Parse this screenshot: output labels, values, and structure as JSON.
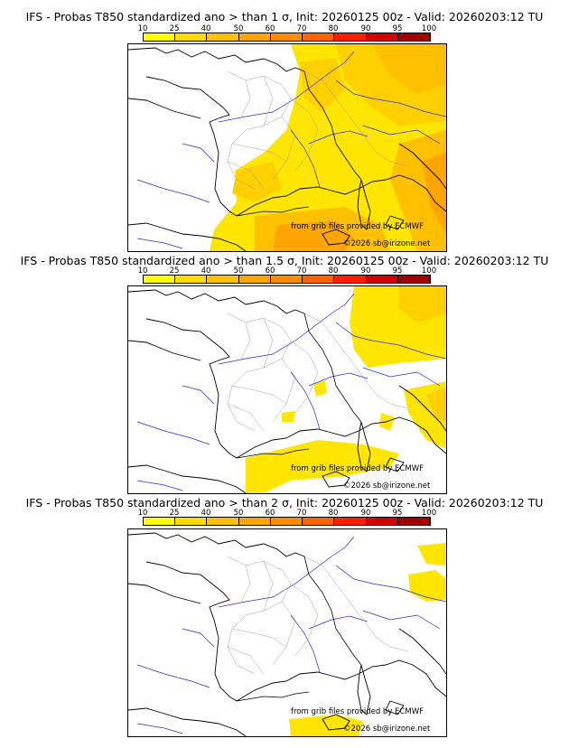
{
  "colorbar": {
    "ticks": [
      "10",
      "25",
      "40",
      "50",
      "60",
      "70",
      "80",
      "90",
      "95",
      "100"
    ],
    "colors": [
      "#ffff00",
      "#ffdc00",
      "#ffc000",
      "#ffa500",
      "#ff8c00",
      "#ff6400",
      "#ff1e00",
      "#d20000",
      "#a00000",
      "#640000"
    ]
  },
  "panels": [
    {
      "title": "IFS - Probas T850  standardized ano > than 1 σ, Init: 20260125 00z - Valid: 20260203:12 TU",
      "credit_source": "from grib files provided by ECMWF",
      "credit_copyright": "©2026 sb@irizone.net",
      "anomaly_threshold": "1 σ"
    },
    {
      "title": "IFS - Probas T850  standardized ano > than 1.5 σ, Init: 20260125 00z - Valid: 20260203:12 TU",
      "credit_source": "from grib files provided by ECMWF",
      "credit_copyright": "©2026 sb@irizone.net",
      "anomaly_threshold": "1.5 σ"
    },
    {
      "title": "IFS - Probas T850  standardized ano > than 2 σ, Init: 20260125 00z - Valid: 20260203:12 TU",
      "credit_source": "from grib files provided by ECMWF",
      "credit_copyright": "©2026 sb@irizone.net",
      "anomaly_threshold": "2 σ"
    }
  ]
}
